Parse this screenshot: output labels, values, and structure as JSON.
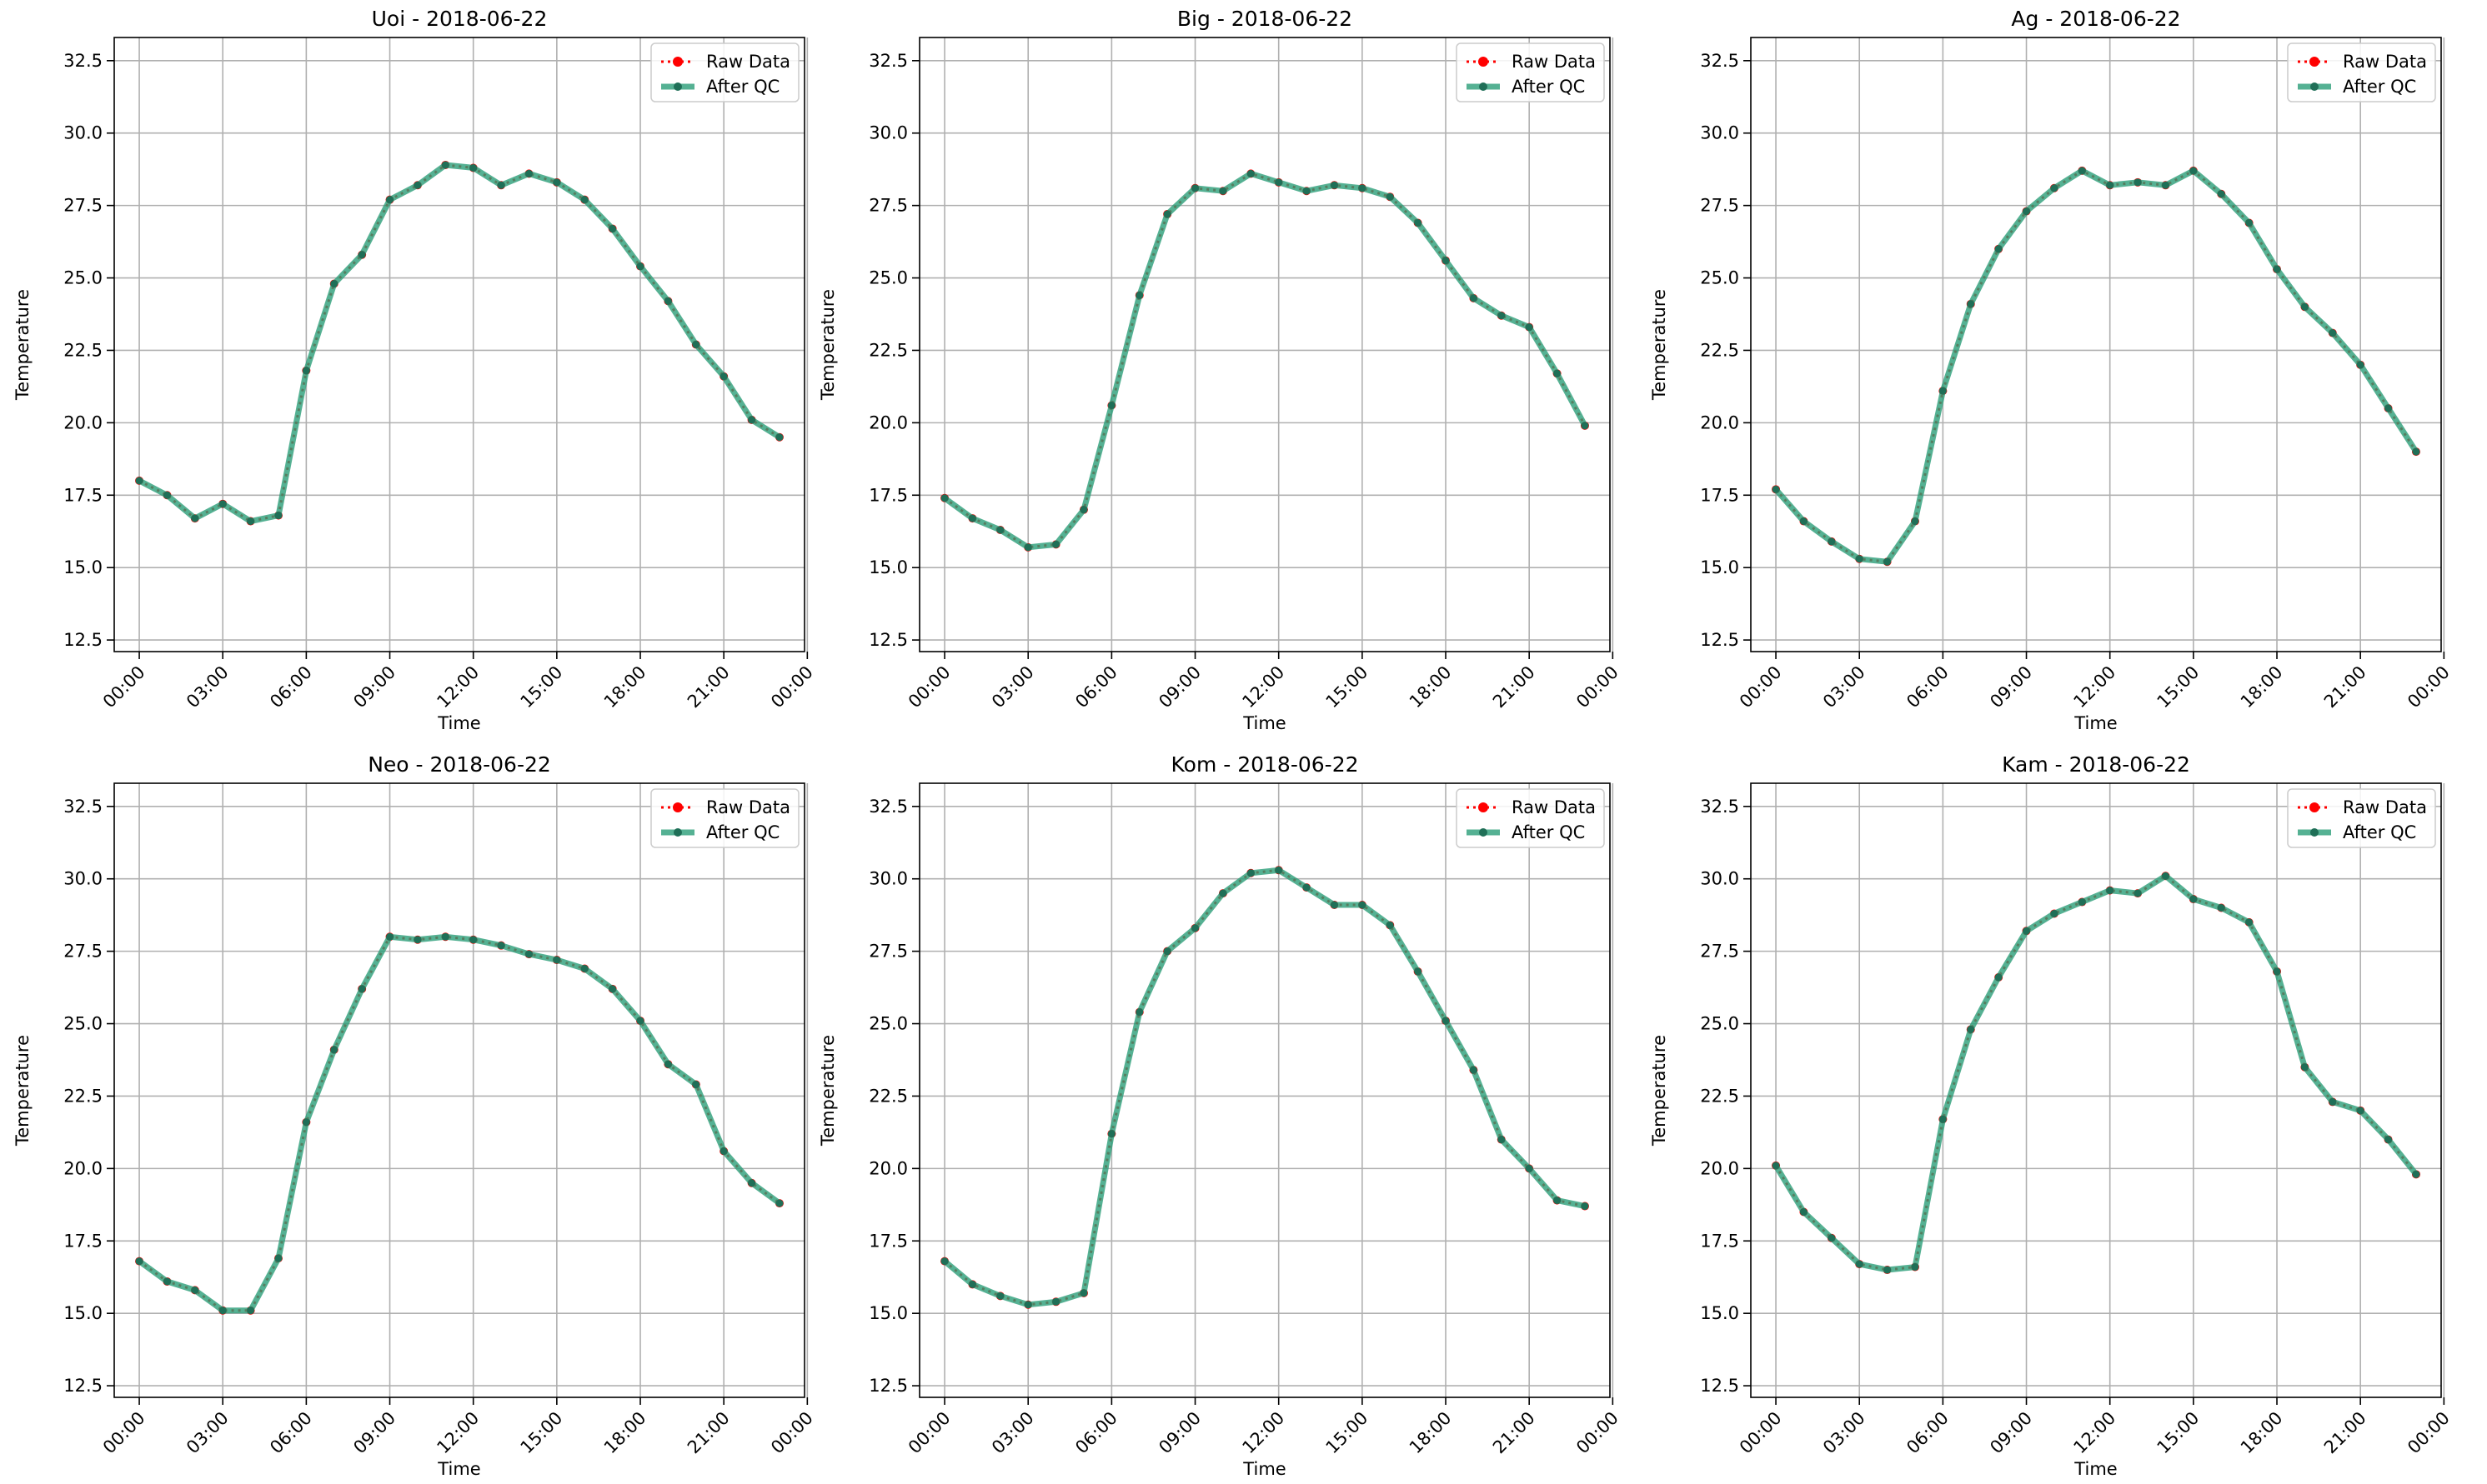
{
  "figure": {
    "panel_count": 6,
    "layout": "2 rows x 3 columns"
  },
  "legend_entries": [
    "Raw Data",
    "After QC"
  ],
  "colors": {
    "raw_data": "#ff0000",
    "after_qc": "#2a9d78",
    "grid": "#b0b0b0",
    "axes": "#000000"
  },
  "chart_data": [
    {
      "type": "line",
      "title": "Uoi - 2018-06-22",
      "xlabel": "Time",
      "ylabel": "Temperature",
      "xlim": [
        -0.9,
        23.9
      ],
      "ylim": [
        12.1,
        33.3
      ],
      "xticks": [
        0,
        3,
        6,
        9,
        12,
        15,
        18,
        21,
        24
      ],
      "xticklabels": [
        "00:00",
        "03:00",
        "06:00",
        "09:00",
        "12:00",
        "15:00",
        "18:00",
        "21:00",
        "00:00"
      ],
      "yticks": [
        12.5,
        15.0,
        17.5,
        20.0,
        22.5,
        25.0,
        27.5,
        30.0,
        32.5
      ],
      "yticklabels": [
        "12.5",
        "15.0",
        "17.5",
        "20.0",
        "22.5",
        "25.0",
        "27.5",
        "30.0",
        "32.5"
      ],
      "grid": true,
      "legend": "upper right",
      "x": [
        0,
        1,
        2,
        3,
        4,
        5,
        6,
        7,
        8,
        9,
        10,
        11,
        12,
        13,
        14,
        15,
        16,
        17,
        18,
        19,
        20,
        21,
        22,
        23
      ],
      "series": [
        {
          "name": "Raw Data",
          "values": [
            18.0,
            17.5,
            16.7,
            17.2,
            16.6,
            16.8,
            21.8,
            24.8,
            25.8,
            27.7,
            28.2,
            28.9,
            28.8,
            28.2,
            28.6,
            28.3,
            27.7,
            26.7,
            25.4,
            24.2,
            22.7,
            21.6,
            20.1,
            19.5
          ]
        },
        {
          "name": "After QC",
          "values": [
            18.0,
            17.5,
            16.7,
            17.2,
            16.6,
            16.8,
            21.8,
            24.8,
            25.8,
            27.7,
            28.2,
            28.9,
            28.8,
            28.2,
            28.6,
            28.3,
            27.7,
            26.7,
            25.4,
            24.2,
            22.7,
            21.6,
            20.1,
            19.5
          ]
        }
      ]
    },
    {
      "type": "line",
      "title": "Big - 2018-06-22",
      "xlabel": "Time",
      "ylabel": "Temperature",
      "xlim": [
        -0.9,
        23.9
      ],
      "ylim": [
        12.1,
        33.3
      ],
      "xticks": [
        0,
        3,
        6,
        9,
        12,
        15,
        18,
        21,
        24
      ],
      "xticklabels": [
        "00:00",
        "03:00",
        "06:00",
        "09:00",
        "12:00",
        "15:00",
        "18:00",
        "21:00",
        "00:00"
      ],
      "yticks": [
        12.5,
        15.0,
        17.5,
        20.0,
        22.5,
        25.0,
        27.5,
        30.0,
        32.5
      ],
      "yticklabels": [
        "12.5",
        "15.0",
        "17.5",
        "20.0",
        "22.5",
        "25.0",
        "27.5",
        "30.0",
        "32.5"
      ],
      "grid": true,
      "legend": "upper right",
      "x": [
        0,
        1,
        2,
        3,
        4,
        5,
        6,
        7,
        8,
        9,
        10,
        11,
        12,
        13,
        14,
        15,
        16,
        17,
        18,
        19,
        20,
        21,
        22,
        23
      ],
      "series": [
        {
          "name": "Raw Data",
          "values": [
            17.4,
            16.7,
            16.3,
            15.7,
            15.8,
            17.0,
            20.6,
            24.4,
            27.2,
            28.1,
            28.0,
            28.6,
            28.3,
            28.0,
            28.2,
            28.1,
            27.8,
            26.9,
            25.6,
            24.3,
            23.7,
            23.3,
            21.7,
            19.9
          ]
        },
        {
          "name": "After QC",
          "values": [
            17.4,
            16.7,
            16.3,
            15.7,
            15.8,
            17.0,
            20.6,
            24.4,
            27.2,
            28.1,
            28.0,
            28.6,
            28.3,
            28.0,
            28.2,
            28.1,
            27.8,
            26.9,
            25.6,
            24.3,
            23.7,
            23.3,
            21.7,
            19.9
          ]
        }
      ]
    },
    {
      "type": "line",
      "title": "Ag - 2018-06-22",
      "xlabel": "Time",
      "ylabel": "Temperature",
      "xlim": [
        -0.9,
        23.9
      ],
      "ylim": [
        12.1,
        33.3
      ],
      "xticks": [
        0,
        3,
        6,
        9,
        12,
        15,
        18,
        21,
        24
      ],
      "xticklabels": [
        "00:00",
        "03:00",
        "06:00",
        "09:00",
        "12:00",
        "15:00",
        "18:00",
        "21:00",
        "00:00"
      ],
      "yticks": [
        12.5,
        15.0,
        17.5,
        20.0,
        22.5,
        25.0,
        27.5,
        30.0,
        32.5
      ],
      "yticklabels": [
        "12.5",
        "15.0",
        "17.5",
        "20.0",
        "22.5",
        "25.0",
        "27.5",
        "30.0",
        "32.5"
      ],
      "grid": true,
      "legend": "upper right",
      "x": [
        0,
        1,
        2,
        3,
        4,
        5,
        6,
        7,
        8,
        9,
        10,
        11,
        12,
        13,
        14,
        15,
        16,
        17,
        18,
        19,
        20,
        21,
        22,
        23
      ],
      "series": [
        {
          "name": "Raw Data",
          "values": [
            17.7,
            16.6,
            15.9,
            15.3,
            15.2,
            16.6,
            21.1,
            24.1,
            26.0,
            27.3,
            28.1,
            28.7,
            28.2,
            28.3,
            28.2,
            28.7,
            27.9,
            26.9,
            25.3,
            24.0,
            23.1,
            22.0,
            20.5,
            19.0
          ]
        },
        {
          "name": "After QC",
          "values": [
            17.7,
            16.6,
            15.9,
            15.3,
            15.2,
            16.6,
            21.1,
            24.1,
            26.0,
            27.3,
            28.1,
            28.7,
            28.2,
            28.3,
            28.2,
            28.7,
            27.9,
            26.9,
            25.3,
            24.0,
            23.1,
            22.0,
            20.5,
            19.0
          ]
        }
      ]
    },
    {
      "type": "line",
      "title": "Neo - 2018-06-22",
      "xlabel": "Time",
      "ylabel": "Temperature",
      "xlim": [
        -0.9,
        23.9
      ],
      "ylim": [
        12.1,
        33.3
      ],
      "xticks": [
        0,
        3,
        6,
        9,
        12,
        15,
        18,
        21,
        24
      ],
      "xticklabels": [
        "00:00",
        "03:00",
        "06:00",
        "09:00",
        "12:00",
        "15:00",
        "18:00",
        "21:00",
        "00:00"
      ],
      "yticks": [
        12.5,
        15.0,
        17.5,
        20.0,
        22.5,
        25.0,
        27.5,
        30.0,
        32.5
      ],
      "yticklabels": [
        "12.5",
        "15.0",
        "17.5",
        "20.0",
        "22.5",
        "25.0",
        "27.5",
        "30.0",
        "32.5"
      ],
      "grid": true,
      "legend": "upper right",
      "x": [
        0,
        1,
        2,
        3,
        4,
        5,
        6,
        7,
        8,
        9,
        10,
        11,
        12,
        13,
        14,
        15,
        16,
        17,
        18,
        19,
        20,
        21,
        22,
        23
      ],
      "series": [
        {
          "name": "Raw Data",
          "values": [
            16.8,
            16.1,
            15.8,
            15.1,
            15.1,
            16.9,
            21.6,
            24.1,
            26.2,
            28.0,
            27.9,
            28.0,
            27.9,
            27.7,
            27.4,
            27.2,
            26.9,
            26.2,
            25.1,
            23.6,
            22.9,
            20.6,
            19.5,
            18.8
          ]
        },
        {
          "name": "After QC",
          "values": [
            16.8,
            16.1,
            15.8,
            15.1,
            15.1,
            16.9,
            21.6,
            24.1,
            26.2,
            28.0,
            27.9,
            28.0,
            27.9,
            27.7,
            27.4,
            27.2,
            26.9,
            26.2,
            25.1,
            23.6,
            22.9,
            20.6,
            19.5,
            18.8
          ]
        }
      ]
    },
    {
      "type": "line",
      "title": "Kom - 2018-06-22",
      "xlabel": "Time",
      "ylabel": "Temperature",
      "xlim": [
        -0.9,
        23.9
      ],
      "ylim": [
        12.1,
        33.3
      ],
      "xticks": [
        0,
        3,
        6,
        9,
        12,
        15,
        18,
        21,
        24
      ],
      "xticklabels": [
        "00:00",
        "03:00",
        "06:00",
        "09:00",
        "12:00",
        "15:00",
        "18:00",
        "21:00",
        "00:00"
      ],
      "yticks": [
        12.5,
        15.0,
        17.5,
        20.0,
        22.5,
        25.0,
        27.5,
        30.0,
        32.5
      ],
      "yticklabels": [
        "12.5",
        "15.0",
        "17.5",
        "20.0",
        "22.5",
        "25.0",
        "27.5",
        "30.0",
        "32.5"
      ],
      "grid": true,
      "legend": "upper right",
      "x": [
        0,
        1,
        2,
        3,
        4,
        5,
        6,
        7,
        8,
        9,
        10,
        11,
        12,
        13,
        14,
        15,
        16,
        17,
        18,
        19,
        20,
        21,
        22,
        23
      ],
      "series": [
        {
          "name": "Raw Data",
          "values": [
            16.8,
            16.0,
            15.6,
            15.3,
            15.4,
            15.7,
            21.2,
            25.4,
            27.5,
            28.3,
            29.5,
            30.2,
            30.3,
            29.7,
            29.1,
            29.1,
            28.4,
            26.8,
            25.1,
            23.4,
            21.0,
            20.0,
            18.9,
            18.7
          ]
        },
        {
          "name": "After QC",
          "values": [
            16.8,
            16.0,
            15.6,
            15.3,
            15.4,
            15.7,
            21.2,
            25.4,
            27.5,
            28.3,
            29.5,
            30.2,
            30.3,
            29.7,
            29.1,
            29.1,
            28.4,
            26.8,
            25.1,
            23.4,
            21.0,
            20.0,
            18.9,
            18.7
          ]
        }
      ]
    },
    {
      "type": "line",
      "title": "Kam - 2018-06-22",
      "xlabel": "Time",
      "ylabel": "Temperature",
      "xlim": [
        -0.9,
        23.9
      ],
      "ylim": [
        12.1,
        33.3
      ],
      "xticks": [
        0,
        3,
        6,
        9,
        12,
        15,
        18,
        21,
        24
      ],
      "xticklabels": [
        "00:00",
        "03:00",
        "06:00",
        "09:00",
        "12:00",
        "15:00",
        "18:00",
        "21:00",
        "00:00"
      ],
      "yticks": [
        12.5,
        15.0,
        17.5,
        20.0,
        22.5,
        25.0,
        27.5,
        30.0,
        32.5
      ],
      "yticklabels": [
        "12.5",
        "15.0",
        "17.5",
        "20.0",
        "22.5",
        "25.0",
        "27.5",
        "30.0",
        "32.5"
      ],
      "grid": true,
      "legend": "upper right",
      "x": [
        0,
        1,
        2,
        3,
        4,
        5,
        6,
        7,
        8,
        9,
        10,
        11,
        12,
        13,
        14,
        15,
        16,
        17,
        18,
        19,
        20,
        21,
        22,
        23
      ],
      "series": [
        {
          "name": "Raw Data",
          "values": [
            20.1,
            18.5,
            17.6,
            16.7,
            16.5,
            16.6,
            21.7,
            24.8,
            26.6,
            28.2,
            28.8,
            29.2,
            29.6,
            29.5,
            30.1,
            29.3,
            29.0,
            28.5,
            26.8,
            23.5,
            22.3,
            22.0,
            21.0,
            19.8
          ]
        },
        {
          "name": "After QC",
          "values": [
            20.1,
            18.5,
            17.6,
            16.7,
            16.5,
            16.6,
            21.7,
            24.8,
            26.6,
            28.2,
            28.8,
            29.2,
            29.6,
            29.5,
            30.1,
            29.3,
            29.0,
            28.5,
            26.8,
            23.5,
            22.3,
            22.0,
            21.0,
            19.8
          ]
        }
      ]
    }
  ]
}
